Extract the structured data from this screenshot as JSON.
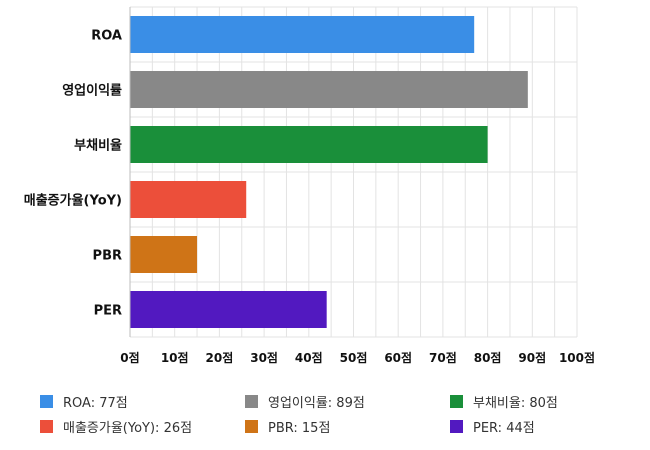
{
  "chart_data": {
    "type": "bar",
    "orientation": "horizontal",
    "categories": [
      "ROA",
      "영업이익률",
      "부채비율",
      "매출증가율(YoY)",
      "PBR",
      "PER"
    ],
    "values": [
      77,
      89,
      80,
      26,
      15,
      44
    ],
    "colors": [
      "#3a8ee6",
      "#888888",
      "#1a8f3a",
      "#ec4f3a",
      "#cf7417",
      "#5219c0"
    ],
    "xlim": [
      0,
      100
    ],
    "xticks": [
      {
        "value": 0,
        "label": "0점"
      },
      {
        "value": 10,
        "label": "10점"
      },
      {
        "value": 20,
        "label": "20점"
      },
      {
        "value": 30,
        "label": "30점"
      },
      {
        "value": 40,
        "label": "40점"
      },
      {
        "value": 50,
        "label": "50점"
      },
      {
        "value": 60,
        "label": "60점"
      },
      {
        "value": 70,
        "label": "70점"
      },
      {
        "value": 80,
        "label": "80점"
      },
      {
        "value": 90,
        "label": "90점"
      },
      {
        "value": 100,
        "label": "100점"
      }
    ],
    "grid": true,
    "legend_position": "bottom",
    "legend": [
      {
        "label": "ROA: 77점",
        "color": "#3a8ee6"
      },
      {
        "label": "영업이익률: 89점",
        "color": "#888888"
      },
      {
        "label": "부채비율: 80점",
        "color": "#1a8f3a"
      },
      {
        "label": "매출증가율(YoY): 26점",
        "color": "#ec4f3a"
      },
      {
        "label": "PBR: 15점",
        "color": "#cf7417"
      },
      {
        "label": "PER: 44점",
        "color": "#5219c0"
      }
    ]
  }
}
